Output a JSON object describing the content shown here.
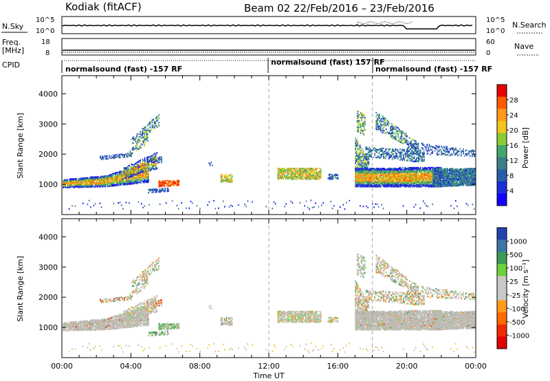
{
  "header": {
    "station": "Kodiak (fitACF)",
    "beam_date": "Beam 02  22/Feb/2016 – 23/Feb/2016"
  },
  "panels": {
    "nsky": {
      "label": "N.Sky",
      "top_tick": "10^5",
      "bottom_tick": "10^0",
      "right_top": "10^5",
      "right_bottom": "10^0",
      "right_label": "N.Search"
    },
    "freq": {
      "label1": "Freq.",
      "label2": "[MHz]",
      "top_tick": "18",
      "bottom_tick": "8",
      "right_top": "60",
      "right_bottom": "0",
      "right_label": "Nave"
    },
    "cpid": {
      "label": "CPID",
      "modes": [
        "normalsound (fast) -157 RF",
        "normalsound (fast) 157 RF",
        "normalsound (fast) -157 RF"
      ]
    }
  },
  "chart_data": [
    {
      "type": "heatmap",
      "name": "Power",
      "ylabel": "Slant Range [km]",
      "ylim": [
        0,
        4600
      ],
      "yticks": [
        1000,
        2000,
        3000,
        4000
      ],
      "xlim_hours": [
        0,
        24
      ],
      "colorbar": {
        "label": "Power [dB]",
        "ticks": [
          "28",
          "24",
          "20",
          "16",
          "12",
          "8",
          "4"
        ],
        "colors": [
          "#e60000",
          "#ff5a00",
          "#ff9a1c",
          "#f2c61f",
          "#8ccc33",
          "#3fa86a",
          "#3a7f8a",
          "#2a5fa8",
          "#1c2fd8",
          "#1400ff"
        ]
      }
    },
    {
      "type": "heatmap",
      "name": "Velocity",
      "ylabel": "Slant Range [km]",
      "ylim": [
        0,
        4600
      ],
      "yticks": [
        1000,
        2000,
        3000,
        4000
      ],
      "xlim_hours": [
        0,
        24
      ],
      "xlabel": "Time UT",
      "xticks": [
        "00:00",
        "04:00",
        "08:00",
        "12:00",
        "16:00",
        "20:00",
        "00:00"
      ],
      "colorbar": {
        "label": "Velocity [m s⁻¹]",
        "ticks": [
          "1000",
          "500",
          "100",
          "25",
          "-25",
          "-100",
          "-500",
          "-1000"
        ],
        "colors": [
          "#2344b0",
          "#3d75a8",
          "#3a9a58",
          "#6cd23c",
          "#c8c8c8",
          "#c8c8c8",
          "#ff9a1c",
          "#ff6a00",
          "#ee2a00",
          "#e00000"
        ]
      }
    }
  ],
  "colors": {
    "ground_scatter": "#bdbab2",
    "dashed": "#a8a8a8"
  }
}
